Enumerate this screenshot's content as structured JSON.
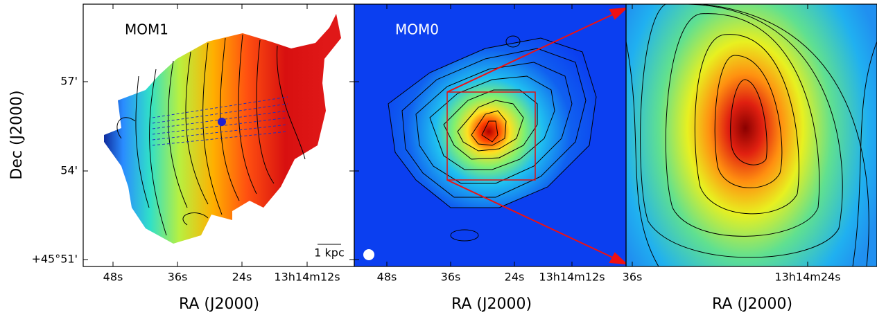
{
  "ylabel": "Dec (J2000)",
  "yticks": [
    "57'",
    "54'",
    "+45°51'"
  ],
  "panels": [
    {
      "label": "MOM1",
      "xticks": [
        "48s",
        "36s",
        "24s",
        "13h14m12s"
      ],
      "xlabel": "RA (J2000)",
      "scale_bar": "1 kpc"
    },
    {
      "label": "MOM0",
      "xticks": [
        "48s",
        "36s",
        "24s",
        "13h14m12s"
      ],
      "xlabel": "RA (J2000)"
    },
    {
      "xticks": [
        "36s",
        "13h14m24s"
      ],
      "xlabel": "RA (J2000)"
    }
  ]
}
